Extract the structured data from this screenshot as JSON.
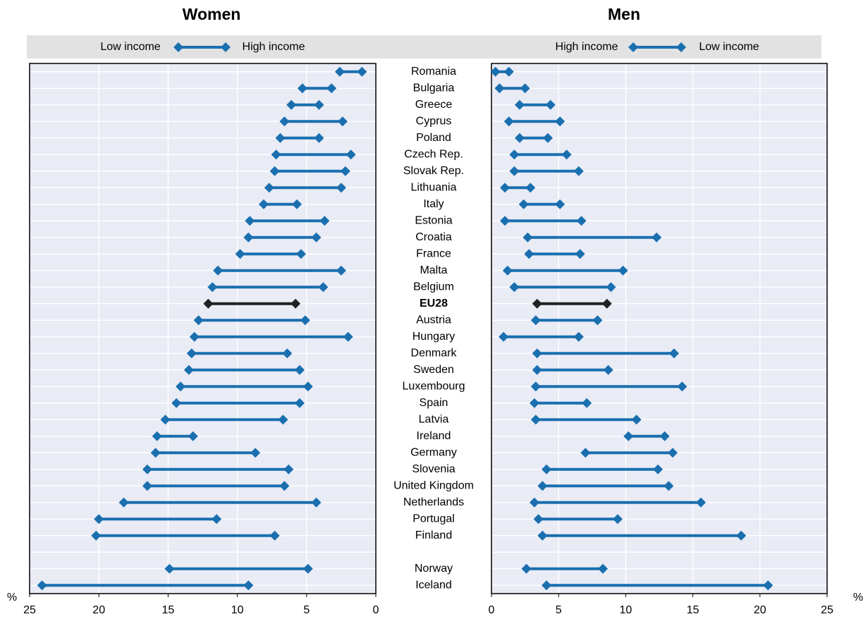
{
  "chart_data": [
    {
      "type": "dumbbell",
      "title": "Women",
      "xlabel": "%",
      "categories": [
        "Romania",
        "Bulgaria",
        "Greece",
        "Cyprus",
        "Poland",
        "Czech Rep.",
        "Slovak Rep.",
        "Lithuania",
        "Italy",
        "Estonia",
        "Croatia",
        "France",
        "Malta",
        "Belgium",
        "EU28",
        "Austria",
        "Hungary",
        "Denmark",
        "Sweden",
        "Luxembourg",
        "Spain",
        "Latvia",
        "Ireland",
        "Germany",
        "Slovenia",
        "United Kingdom",
        "Netherlands",
        "Portugal",
        "Finland",
        null,
        "Norway",
        "Iceland"
      ],
      "highlight": "EU28",
      "highlight_color": "#222222",
      "series": [
        {
          "name": "Low income",
          "color": "#1a6faf",
          "values": [
            2.6,
            5.3,
            6.1,
            6.6,
            6.9,
            7.2,
            7.3,
            7.7,
            8.1,
            9.1,
            9.2,
            9.8,
            11.4,
            11.8,
            12.1,
            12.8,
            13.1,
            13.3,
            13.5,
            14.1,
            14.4,
            15.2,
            15.8,
            15.9,
            16.5,
            16.5,
            18.2,
            20.0,
            20.2,
            null,
            14.9,
            24.1
          ]
        },
        {
          "name": "High income",
          "color": "#1a6faf",
          "values": [
            1.0,
            3.2,
            4.1,
            2.4,
            4.1,
            1.8,
            2.2,
            2.5,
            5.7,
            3.7,
            4.3,
            5.4,
            2.5,
            3.8,
            5.8,
            5.1,
            2.0,
            6.4,
            5.5,
            4.9,
            5.5,
            6.7,
            13.2,
            8.7,
            6.3,
            6.6,
            4.3,
            11.5,
            7.3,
            null,
            4.9,
            9.2
          ]
        }
      ],
      "xlim": [
        25,
        0
      ],
      "xticks": [
        25,
        20,
        15,
        10,
        5,
        0
      ],
      "grid": true,
      "background": "#e9ebf5"
    },
    {
      "type": "dumbbell",
      "title": "Men",
      "xlabel": "%",
      "highlight": "EU28",
      "highlight_color": "#222222",
      "series": [
        {
          "name": "High income",
          "color": "#1a6faf",
          "values": [
            0.3,
            0.6,
            2.1,
            1.3,
            2.1,
            1.7,
            1.7,
            1.0,
            2.4,
            1.0,
            2.7,
            2.8,
            1.2,
            1.7,
            3.4,
            3.3,
            0.9,
            3.4,
            3.4,
            3.3,
            3.2,
            3.3,
            10.2,
            7.0,
            4.1,
            3.8,
            3.2,
            3.5,
            3.8,
            null,
            2.6,
            4.1
          ]
        },
        {
          "name": "Low income",
          "color": "#1a6faf",
          "values": [
            1.3,
            2.5,
            4.4,
            5.1,
            4.2,
            5.6,
            6.5,
            2.9,
            5.1,
            6.7,
            12.3,
            6.6,
            9.8,
            8.9,
            8.6,
            7.9,
            6.5,
            13.6,
            8.7,
            14.2,
            7.1,
            10.8,
            12.9,
            13.5,
            12.4,
            13.2,
            15.6,
            9.4,
            18.6,
            null,
            8.3,
            20.6
          ]
        }
      ],
      "xlim": [
        0,
        25
      ],
      "xticks": [
        0,
        5,
        10,
        15,
        20,
        25
      ],
      "grid": true,
      "background": "#e9ebf5"
    }
  ]
}
